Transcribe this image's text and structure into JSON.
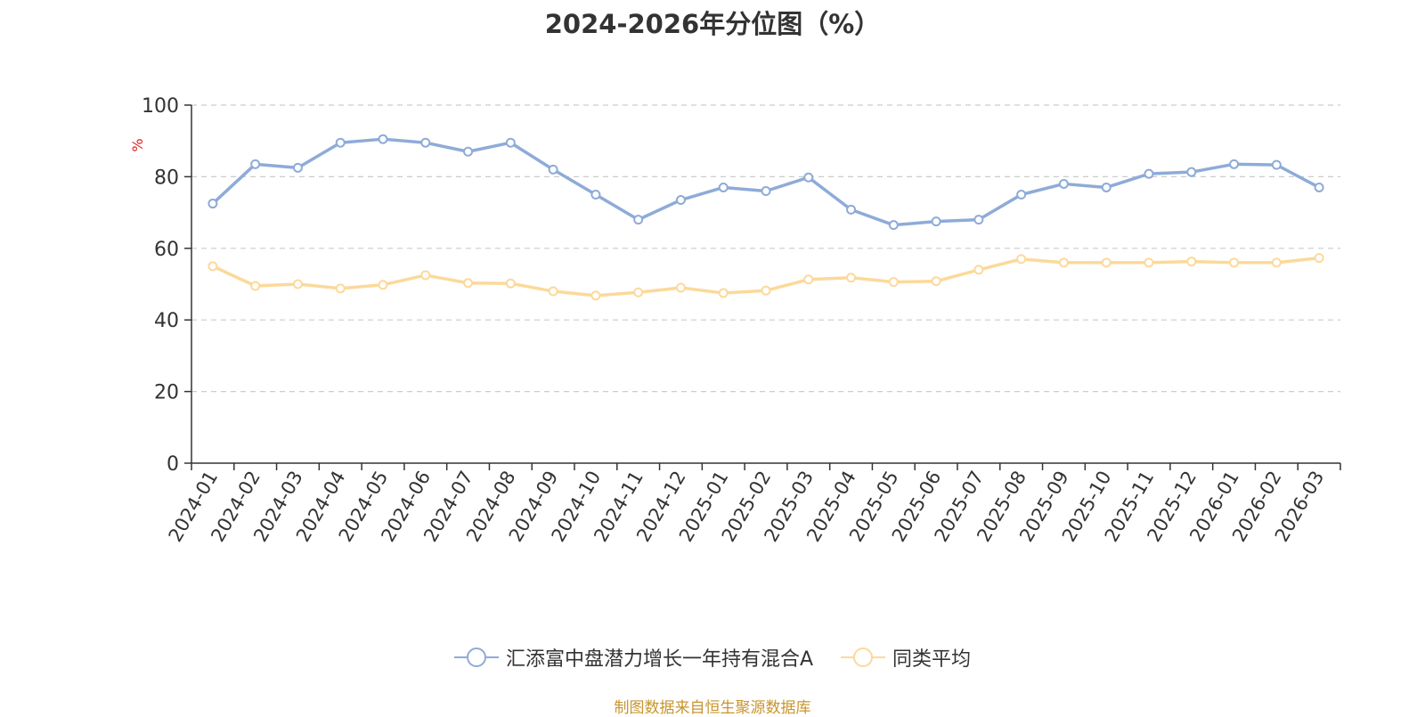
{
  "chart_data": {
    "type": "line",
    "title": "2024-2026年分位图（%）",
    "ylabel": "%",
    "ylim": [
      0,
      100
    ],
    "yticks": [
      0,
      20,
      40,
      60,
      80,
      100
    ],
    "grid": true,
    "legend_position": "bottom",
    "categories": [
      "2024-01",
      "2024-02",
      "2024-03",
      "2024-04",
      "2024-05",
      "2024-06",
      "2024-07",
      "2024-08",
      "2024-09",
      "2024-10",
      "2024-11",
      "2024-12",
      "2025-01",
      "2025-02",
      "2025-03",
      "2025-04",
      "2025-05",
      "2025-06",
      "2025-07",
      "2025-08",
      "2025-09",
      "2025-10",
      "2025-11",
      "2025-12",
      "2026-01",
      "2026-02",
      "2026-03"
    ],
    "series": [
      {
        "name": "汇添富中盘潜力增长一年持有混合A",
        "color": "#8eabd8",
        "values": [
          72.5,
          83.5,
          82.5,
          89.5,
          90.5,
          89.5,
          87,
          89.5,
          82,
          75,
          68,
          73.5,
          77,
          76,
          79.8,
          70.8,
          66.5,
          67.5,
          68,
          75,
          78,
          77,
          80.8,
          81.3,
          83.5,
          83.3,
          77
        ]
      },
      {
        "name": "同类平均",
        "color": "#fcd99a",
        "values": [
          55,
          49.5,
          50,
          48.8,
          49.8,
          52.5,
          50.3,
          50.2,
          48,
          46.8,
          47.7,
          49,
          47.5,
          48.2,
          51.3,
          51.8,
          50.6,
          50.8,
          54,
          57,
          56,
          56,
          56,
          56.3,
          56,
          56,
          57.3
        ]
      }
    ],
    "source": "制图数据来自恒生聚源数据库"
  }
}
